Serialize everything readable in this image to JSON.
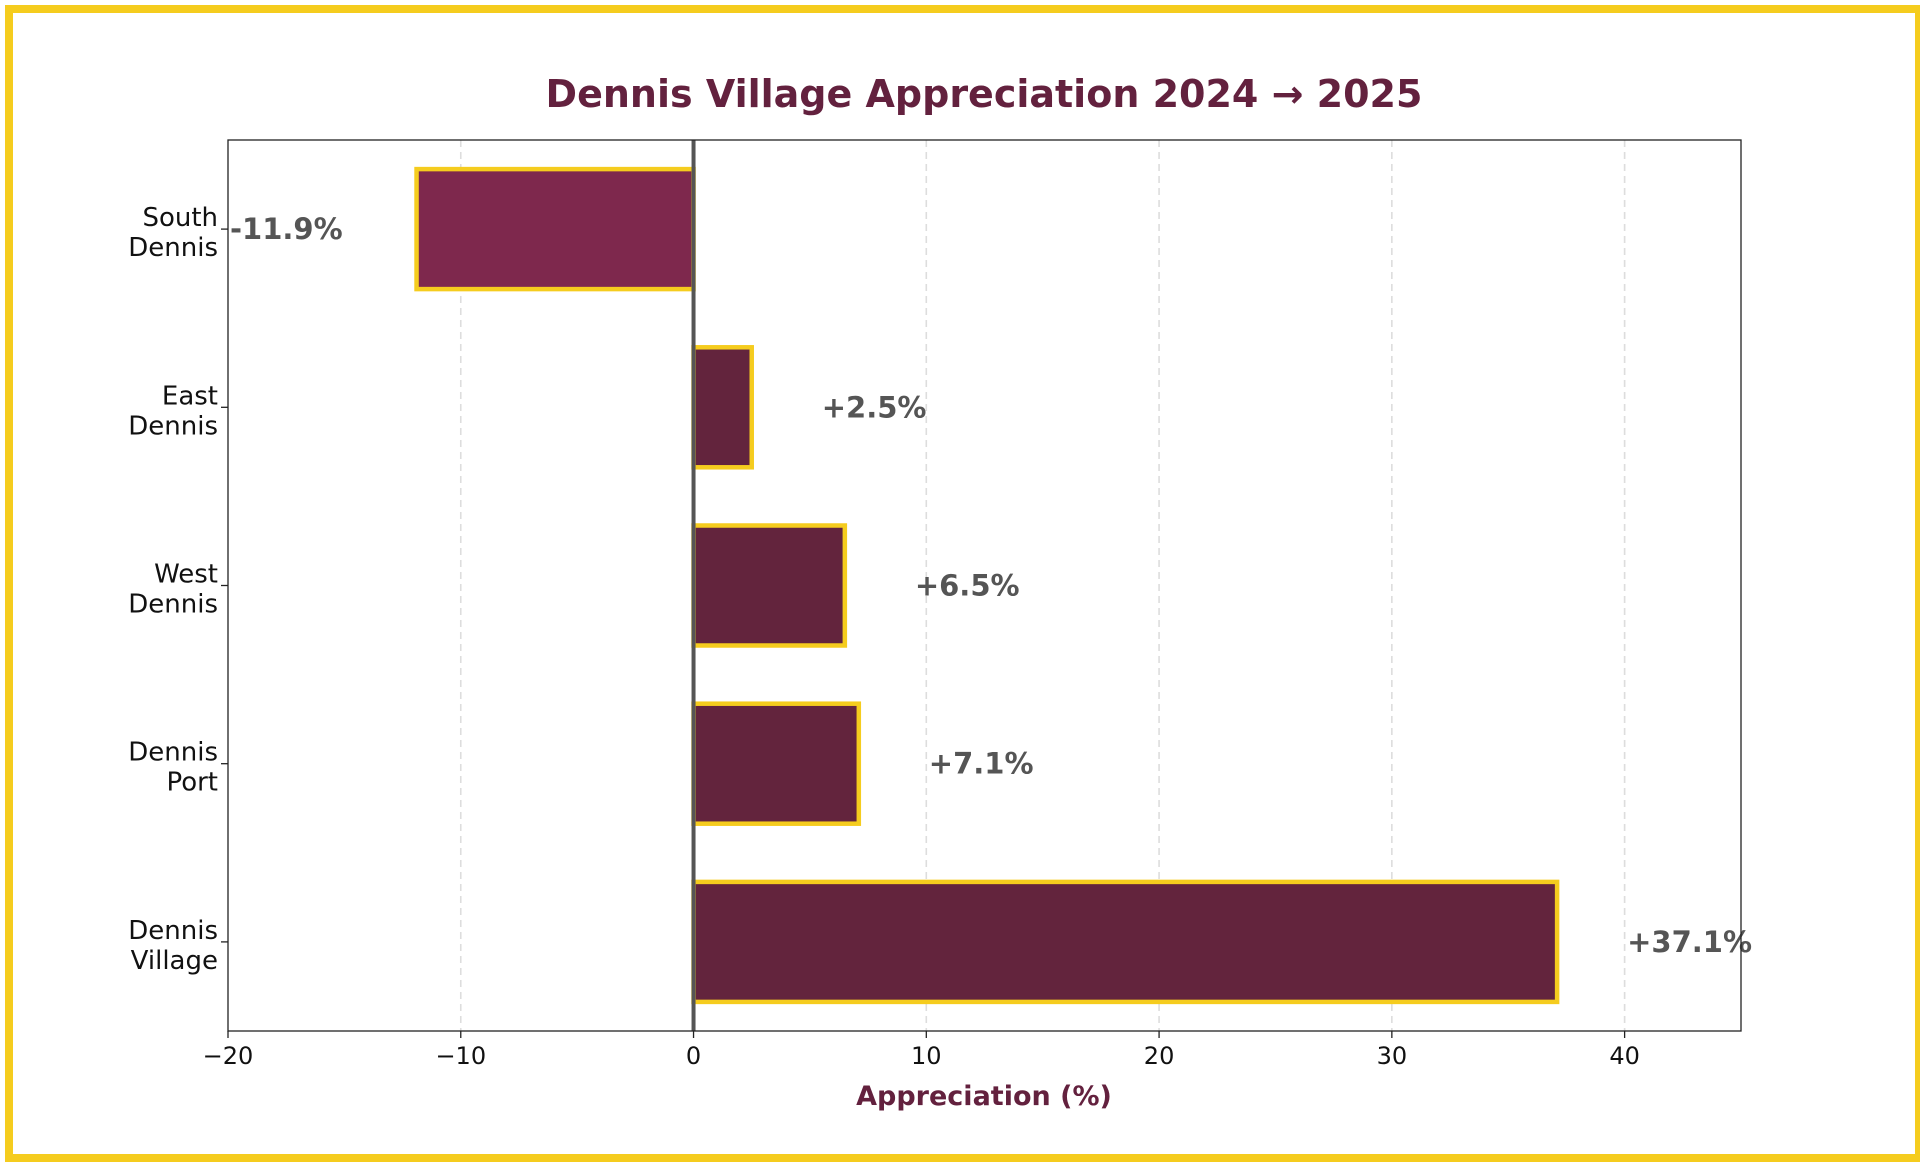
{
  "chart_data": {
    "type": "bar",
    "orientation": "horizontal",
    "title": "Dennis Village Appreciation 2024 → 2025",
    "xlabel": "Appreciation (%)",
    "ylabel": "",
    "xlim": [
      -20,
      45
    ],
    "xticks": [
      -20,
      -10,
      0,
      10,
      20,
      30,
      40
    ],
    "xtick_labels": [
      "−20",
      "−10",
      "0",
      "10",
      "20",
      "30",
      "40"
    ],
    "grid": "vertical dashed",
    "categories": [
      [
        "South",
        "Dennis"
      ],
      [
        "East",
        "Dennis"
      ],
      [
        "West",
        "Dennis"
      ],
      [
        "Dennis",
        "Port"
      ],
      [
        "Dennis",
        "Village"
      ]
    ],
    "values": [
      -11.9,
      2.5,
      6.5,
      7.1,
      37.1
    ],
    "data_labels": [
      "-11.9%",
      "+2.5%",
      "+6.5%",
      "+7.1%",
      "+37.1%"
    ]
  },
  "colors": {
    "frame": "#f5cc1e",
    "bar_positive": "#63243d",
    "bar_negative": "#7e284d",
    "bar_edge": "#f5cc1e",
    "title": "#63213e",
    "xlabel": "#63213e",
    "data_label": "#555555",
    "zero_line": "#555555",
    "grid": "#dddddd"
  }
}
